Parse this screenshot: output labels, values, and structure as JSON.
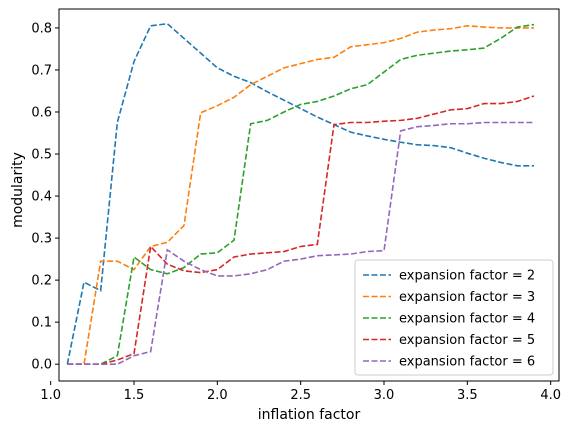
{
  "chart_data": {
    "type": "line",
    "xlabel": "inflation factor",
    "ylabel": "modularity",
    "xlim": [
      1.05,
      4.05
    ],
    "ylim": [
      -0.04,
      0.845
    ],
    "x_ticks": [
      "1.0",
      "1.5",
      "2.0",
      "2.5",
      "3.0",
      "3.5",
      "4.0"
    ],
    "x_tick_values": [
      1.0,
      1.5,
      2.0,
      2.5,
      3.0,
      3.5,
      4.0
    ],
    "y_ticks": [
      "0.0",
      "0.1",
      "0.2",
      "0.3",
      "0.4",
      "0.5",
      "0.6",
      "0.7",
      "0.8"
    ],
    "y_tick_values": [
      0.0,
      0.1,
      0.2,
      0.3,
      0.4,
      0.5,
      0.6,
      0.7,
      0.8
    ],
    "grid": false,
    "legend_position": "bottom-right",
    "line_style": "dashed",
    "x": [
      1.1,
      1.2,
      1.3,
      1.4,
      1.5,
      1.6,
      1.7,
      1.8,
      1.9,
      2.0,
      2.1,
      2.2,
      2.3,
      2.4,
      2.5,
      2.6,
      2.7,
      2.8,
      2.9,
      3.0,
      3.1,
      3.2,
      3.3,
      3.4,
      3.5,
      3.6,
      3.7,
      3.8,
      3.9
    ],
    "series": [
      {
        "name": "expansion factor = 2",
        "color": "#1f77b4",
        "values": [
          0.0,
          0.195,
          0.175,
          0.575,
          0.72,
          0.805,
          0.81,
          0.775,
          0.74,
          0.705,
          0.685,
          0.67,
          0.648,
          0.628,
          0.608,
          0.588,
          0.57,
          0.552,
          0.543,
          0.535,
          0.528,
          0.522,
          0.52,
          0.515,
          0.502,
          0.49,
          0.48,
          0.472,
          0.472
        ]
      },
      {
        "name": "expansion factor = 3",
        "color": "#ff7f0e",
        "values": [
          0.0,
          0.0,
          0.245,
          0.245,
          0.225,
          0.28,
          0.29,
          0.33,
          0.598,
          0.615,
          0.635,
          0.665,
          0.685,
          0.705,
          0.715,
          0.725,
          0.73,
          0.755,
          0.76,
          0.765,
          0.775,
          0.79,
          0.795,
          0.798,
          0.805,
          0.802,
          0.8,
          0.8,
          0.8
        ]
      },
      {
        "name": "expansion factor = 4",
        "color": "#2ca02c",
        "values": [
          0.0,
          0.0,
          0.0,
          0.02,
          0.255,
          0.225,
          0.215,
          0.23,
          0.262,
          0.265,
          0.295,
          0.572,
          0.58,
          0.6,
          0.618,
          0.625,
          0.638,
          0.655,
          0.665,
          0.695,
          0.725,
          0.735,
          0.74,
          0.745,
          0.748,
          0.752,
          0.775,
          0.802,
          0.808
        ]
      },
      {
        "name": "expansion factor = 5",
        "color": "#d62728",
        "values": [
          0.0,
          0.0,
          0.0,
          0.01,
          0.025,
          0.28,
          0.238,
          0.222,
          0.218,
          0.225,
          0.255,
          0.262,
          0.265,
          0.268,
          0.28,
          0.285,
          0.57,
          0.575,
          0.575,
          0.578,
          0.58,
          0.585,
          0.595,
          0.605,
          0.608,
          0.62,
          0.62,
          0.625,
          0.638
        ]
      },
      {
        "name": "expansion factor = 6",
        "color": "#9467bd",
        "values": [
          0.0,
          0.0,
          0.0,
          0.0,
          0.02,
          0.03,
          0.272,
          0.245,
          0.225,
          0.21,
          0.21,
          0.215,
          0.225,
          0.245,
          0.25,
          0.258,
          0.26,
          0.262,
          0.268,
          0.27,
          0.555,
          0.565,
          0.568,
          0.572,
          0.572,
          0.575,
          0.575,
          0.575,
          0.575
        ]
      }
    ]
  }
}
